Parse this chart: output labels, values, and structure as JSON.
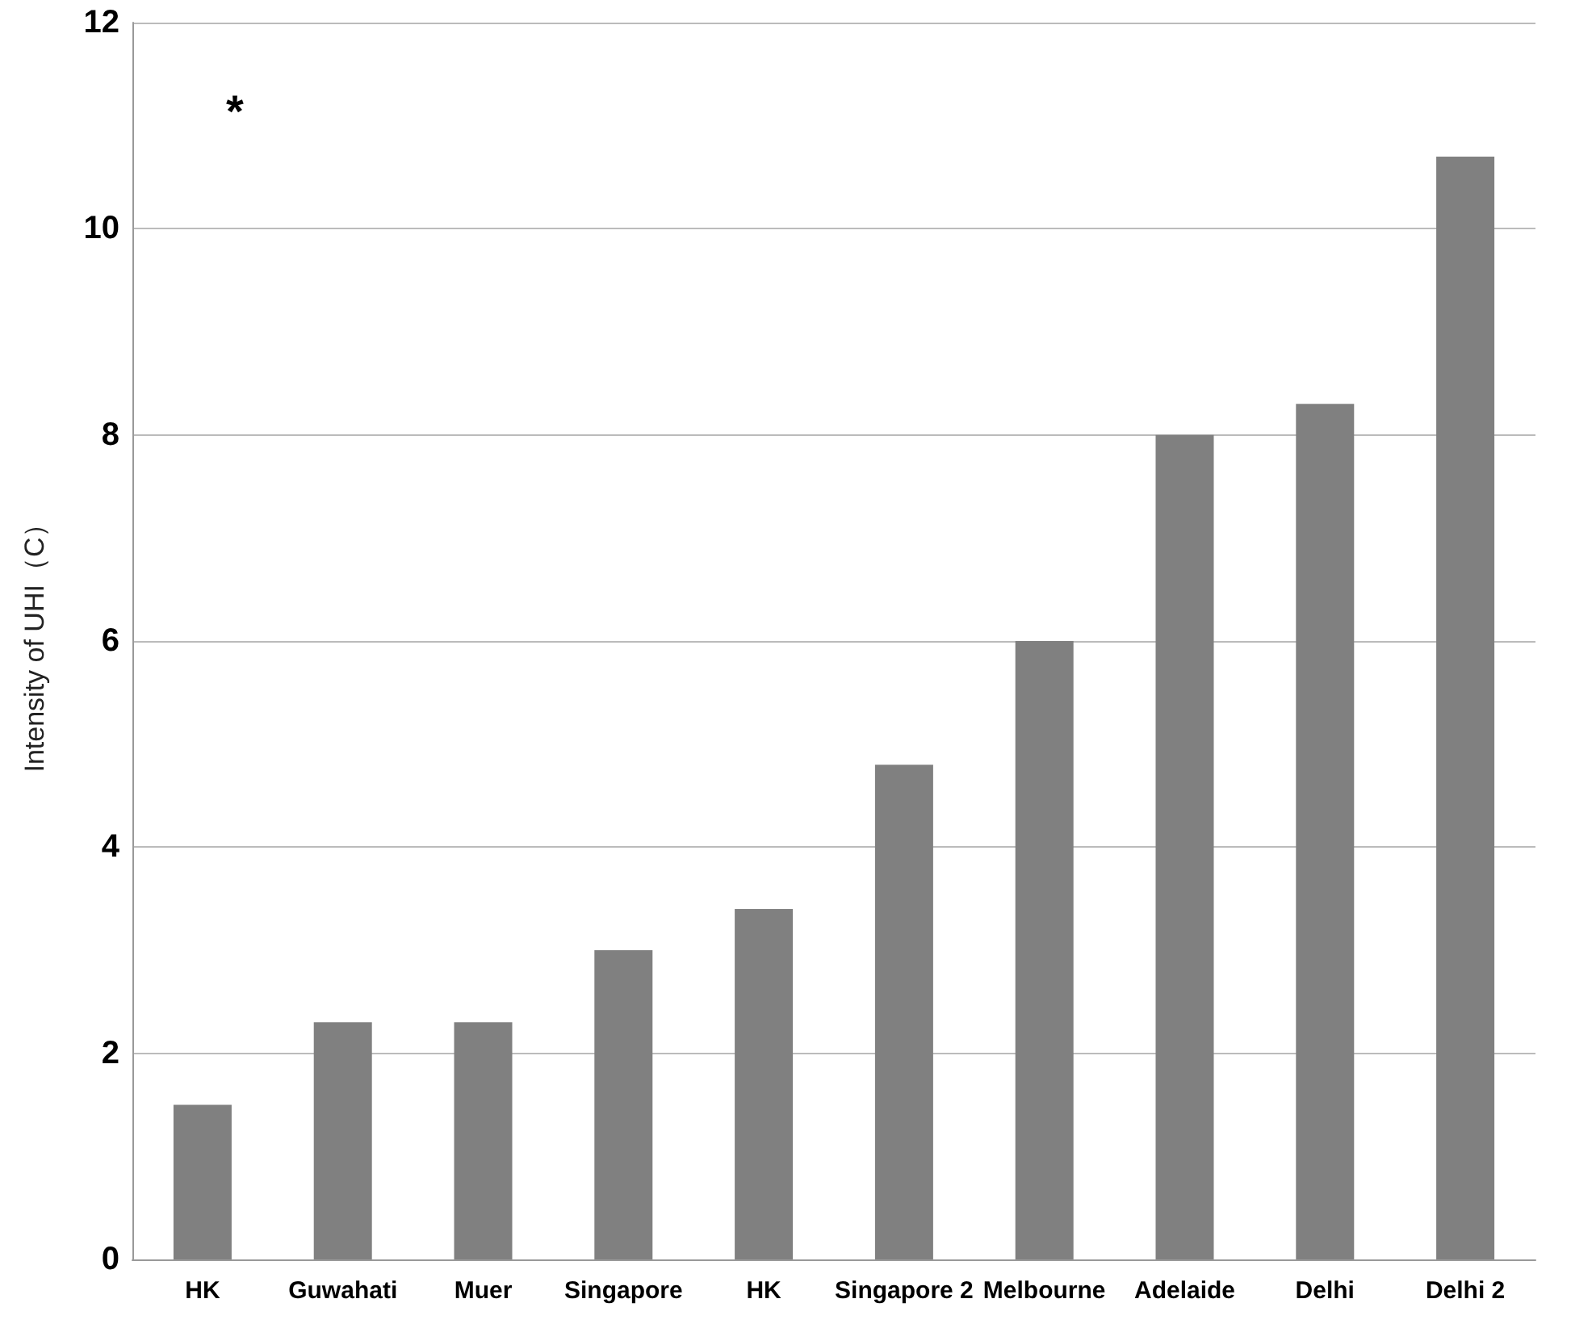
{
  "chart_data": {
    "type": "bar",
    "ylabel": "Intensity of UHI（C）",
    "categories": [
      "HK",
      "Guwahati",
      "Muer",
      "Singapore",
      "HK",
      "Singapore 2",
      "Melbourne",
      "Adelaide",
      "Delhi",
      "Delhi 2"
    ],
    "values": [
      1.5,
      2.3,
      2.3,
      3.0,
      3.4,
      4.8,
      6.0,
      8.0,
      8.3,
      10.7
    ],
    "color": "#808080",
    "ylim": [
      0,
      12
    ],
    "yticks": [
      0,
      2,
      4,
      6,
      8,
      10,
      12
    ],
    "grid": "y",
    "annotations": [
      "*"
    ]
  }
}
